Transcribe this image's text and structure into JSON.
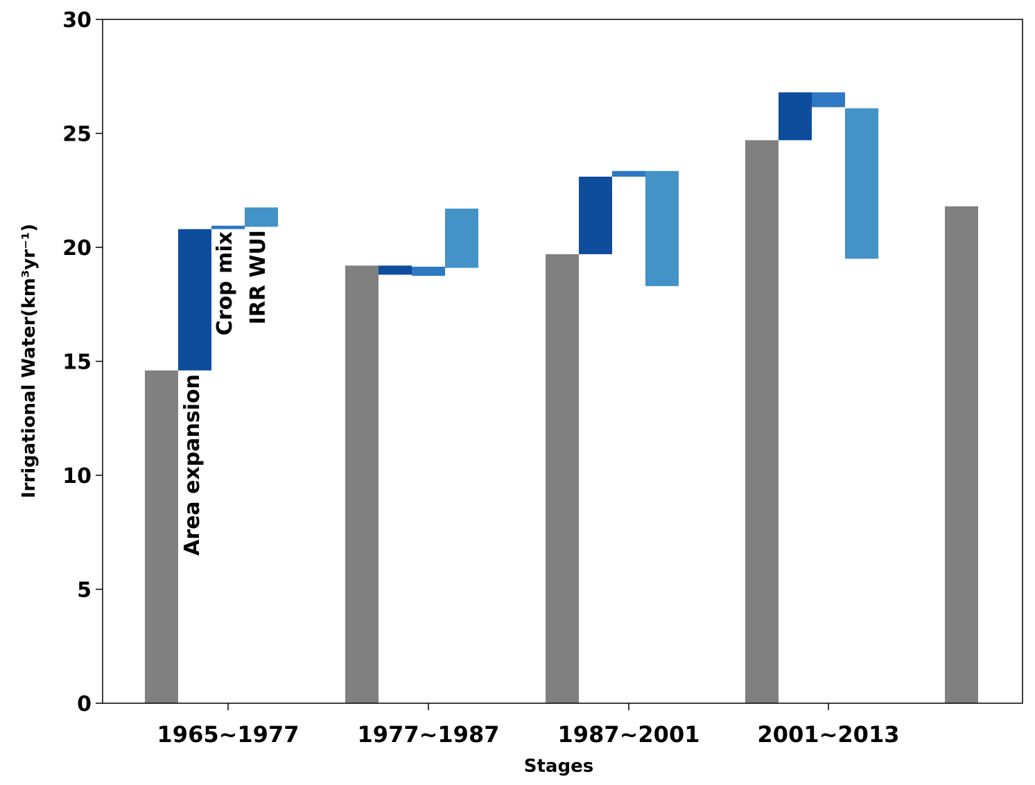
{
  "chart_data": {
    "type": "bar",
    "subtype": "waterfall",
    "title": "",
    "xlabel": "Stages",
    "ylabel": "Irrigational Water(km³yr⁻¹)",
    "ylim": [
      0,
      30
    ],
    "y_ticks": [
      "0",
      "5",
      "10",
      "15",
      "20",
      "25",
      "30"
    ],
    "categories": [
      "1965~1977",
      "1977~1987",
      "1987~2001",
      "2001~2013"
    ],
    "grid": false,
    "legend": "none",
    "totals": [
      {
        "name": "1965",
        "value": 14.6
      },
      {
        "name": "1977",
        "value": 19.2
      },
      {
        "name": "1987",
        "value": 19.7
      },
      {
        "name": "2001",
        "value": 24.7
      },
      {
        "name": "2013",
        "value": 21.8
      }
    ],
    "series": [
      {
        "name": "Area expansion",
        "color": "#0d4d9c",
        "segments": [
          [
            14.6,
            20.8
          ],
          [
            18.8,
            19.2
          ],
          [
            19.7,
            23.1
          ],
          [
            24.7,
            26.8
          ]
        ]
      },
      {
        "name": "Crop mix",
        "color": "#2e78c4",
        "segments": [
          [
            20.8,
            20.95
          ],
          [
            18.75,
            19.15
          ],
          [
            23.1,
            23.35
          ],
          [
            26.15,
            26.8
          ]
        ]
      },
      {
        "name": "IRR WUI",
        "color": "#4393c8",
        "segments": [
          [
            20.9,
            21.75
          ],
          [
            19.1,
            21.7
          ],
          [
            18.3,
            23.35
          ],
          [
            19.5,
            26.1
          ]
        ]
      }
    ],
    "annotations": [
      "Area expansion",
      "Crop mix",
      "IRR WUI"
    ],
    "total_color": "#808080"
  }
}
